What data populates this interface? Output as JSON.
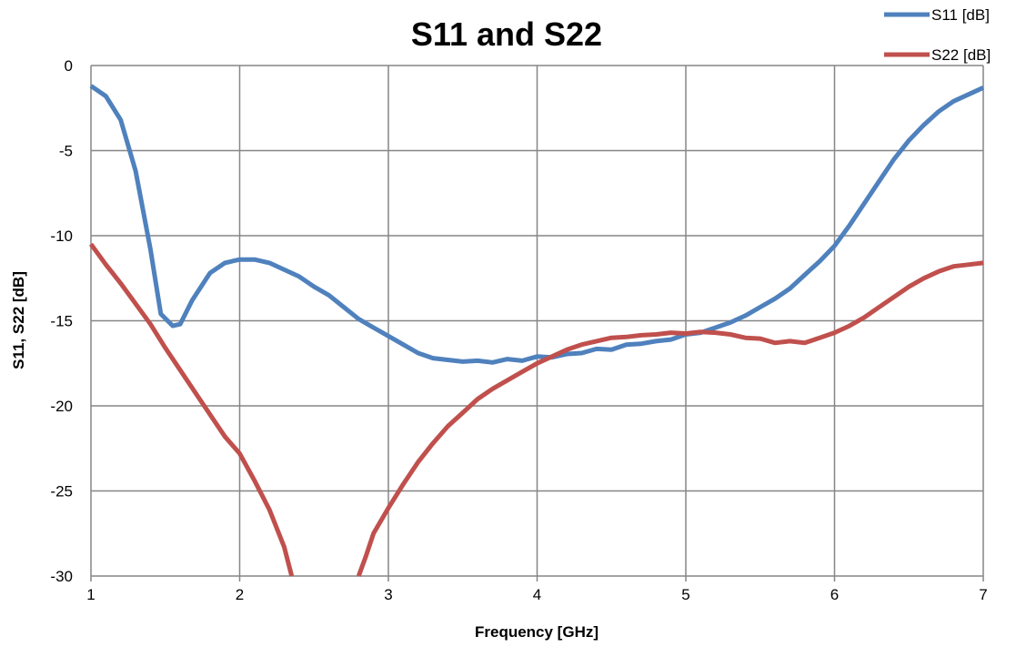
{
  "chart_data": {
    "type": "line",
    "title": "S11 and S22",
    "xlabel": "Frequency [GHz]",
    "ylabel": "S11, S22 [dB]",
    "xlim": [
      1,
      7
    ],
    "ylim": [
      -30,
      0
    ],
    "xticks": [
      1,
      2,
      3,
      4,
      5,
      6,
      7
    ],
    "yticks": [
      0,
      -5,
      -10,
      -15,
      -20,
      -25,
      -30
    ],
    "grid": true,
    "legend_position": "top-right",
    "series": [
      {
        "name": "S11 [dB]",
        "color": "#4f81bd",
        "points": [
          [
            1.0,
            -1.2
          ],
          [
            1.1,
            -1.8
          ],
          [
            1.2,
            -3.2
          ],
          [
            1.3,
            -6.2
          ],
          [
            1.4,
            -10.8
          ],
          [
            1.47,
            -14.6
          ],
          [
            1.55,
            -15.3
          ],
          [
            1.6,
            -15.2
          ],
          [
            1.68,
            -13.8
          ],
          [
            1.8,
            -12.2
          ],
          [
            1.9,
            -11.6
          ],
          [
            2.0,
            -11.4
          ],
          [
            2.1,
            -11.4
          ],
          [
            2.2,
            -11.6
          ],
          [
            2.4,
            -12.4
          ],
          [
            2.5,
            -13.0
          ],
          [
            2.6,
            -13.5
          ],
          [
            2.8,
            -14.9
          ],
          [
            2.9,
            -15.4
          ],
          [
            3.0,
            -15.9
          ],
          [
            3.1,
            -16.4
          ],
          [
            3.2,
            -16.9
          ],
          [
            3.3,
            -17.2
          ],
          [
            3.5,
            -17.4
          ],
          [
            3.6,
            -17.35
          ],
          [
            3.7,
            -17.45
          ],
          [
            3.8,
            -17.25
          ],
          [
            3.9,
            -17.35
          ],
          [
            4.0,
            -17.1
          ],
          [
            4.1,
            -17.15
          ],
          [
            4.2,
            -16.95
          ],
          [
            4.3,
            -16.9
          ],
          [
            4.4,
            -16.65
          ],
          [
            4.5,
            -16.7
          ],
          [
            4.6,
            -16.4
          ],
          [
            4.7,
            -16.35
          ],
          [
            4.8,
            -16.2
          ],
          [
            4.9,
            -16.1
          ],
          [
            5.0,
            -15.8
          ],
          [
            5.1,
            -15.7
          ],
          [
            5.2,
            -15.4
          ],
          [
            5.3,
            -15.1
          ],
          [
            5.4,
            -14.7
          ],
          [
            5.5,
            -14.2
          ],
          [
            5.6,
            -13.7
          ],
          [
            5.7,
            -13.1
          ],
          [
            5.8,
            -12.3
          ],
          [
            5.9,
            -11.5
          ],
          [
            6.0,
            -10.6
          ],
          [
            6.1,
            -9.4
          ],
          [
            6.2,
            -8.1
          ],
          [
            6.3,
            -6.8
          ],
          [
            6.4,
            -5.5
          ],
          [
            6.5,
            -4.4
          ],
          [
            6.6,
            -3.5
          ],
          [
            6.7,
            -2.7
          ],
          [
            6.8,
            -2.1
          ],
          [
            6.9,
            -1.7
          ],
          [
            7.0,
            -1.3
          ]
        ]
      },
      {
        "name": "S22 [dB]",
        "color": "#c0504d",
        "points": [
          [
            1.0,
            -10.5
          ],
          [
            1.1,
            -11.7
          ],
          [
            1.2,
            -12.8
          ],
          [
            1.3,
            -14.0
          ],
          [
            1.4,
            -15.2
          ],
          [
            1.5,
            -16.6
          ],
          [
            1.6,
            -17.9
          ],
          [
            1.7,
            -19.2
          ],
          [
            1.8,
            -20.5
          ],
          [
            1.9,
            -21.8
          ],
          [
            2.0,
            -22.8
          ],
          [
            2.1,
            -24.4
          ],
          [
            2.2,
            -26.1
          ],
          [
            2.3,
            -28.3
          ],
          [
            2.35,
            -30.0
          ],
          null,
          [
            2.8,
            -30.0
          ],
          [
            2.85,
            -28.8
          ],
          [
            2.9,
            -27.5
          ],
          [
            3.0,
            -26.0
          ],
          [
            3.1,
            -24.6
          ],
          [
            3.2,
            -23.3
          ],
          [
            3.3,
            -22.2
          ],
          [
            3.4,
            -21.2
          ],
          [
            3.5,
            -20.4
          ],
          [
            3.6,
            -19.6
          ],
          [
            3.7,
            -19.0
          ],
          [
            3.8,
            -18.5
          ],
          [
            3.9,
            -18.0
          ],
          [
            4.0,
            -17.5
          ],
          [
            4.1,
            -17.1
          ],
          [
            4.2,
            -16.7
          ],
          [
            4.3,
            -16.4
          ],
          [
            4.4,
            -16.2
          ],
          [
            4.5,
            -16.0
          ],
          [
            4.6,
            -15.95
          ],
          [
            4.7,
            -15.85
          ],
          [
            4.8,
            -15.8
          ],
          [
            4.9,
            -15.7
          ],
          [
            5.0,
            -15.75
          ],
          [
            5.1,
            -15.65
          ],
          [
            5.2,
            -15.7
          ],
          [
            5.3,
            -15.8
          ],
          [
            5.4,
            -16.0
          ],
          [
            5.5,
            -16.05
          ],
          [
            5.6,
            -16.3
          ],
          [
            5.7,
            -16.2
          ],
          [
            5.8,
            -16.3
          ],
          [
            5.9,
            -16.0
          ],
          [
            6.0,
            -15.7
          ],
          [
            6.1,
            -15.3
          ],
          [
            6.2,
            -14.8
          ],
          [
            6.3,
            -14.2
          ],
          [
            6.4,
            -13.6
          ],
          [
            6.5,
            -13.0
          ],
          [
            6.6,
            -12.5
          ],
          [
            6.7,
            -12.1
          ],
          [
            6.8,
            -11.8
          ],
          [
            6.9,
            -11.7
          ],
          [
            7.0,
            -11.6
          ]
        ]
      }
    ]
  }
}
